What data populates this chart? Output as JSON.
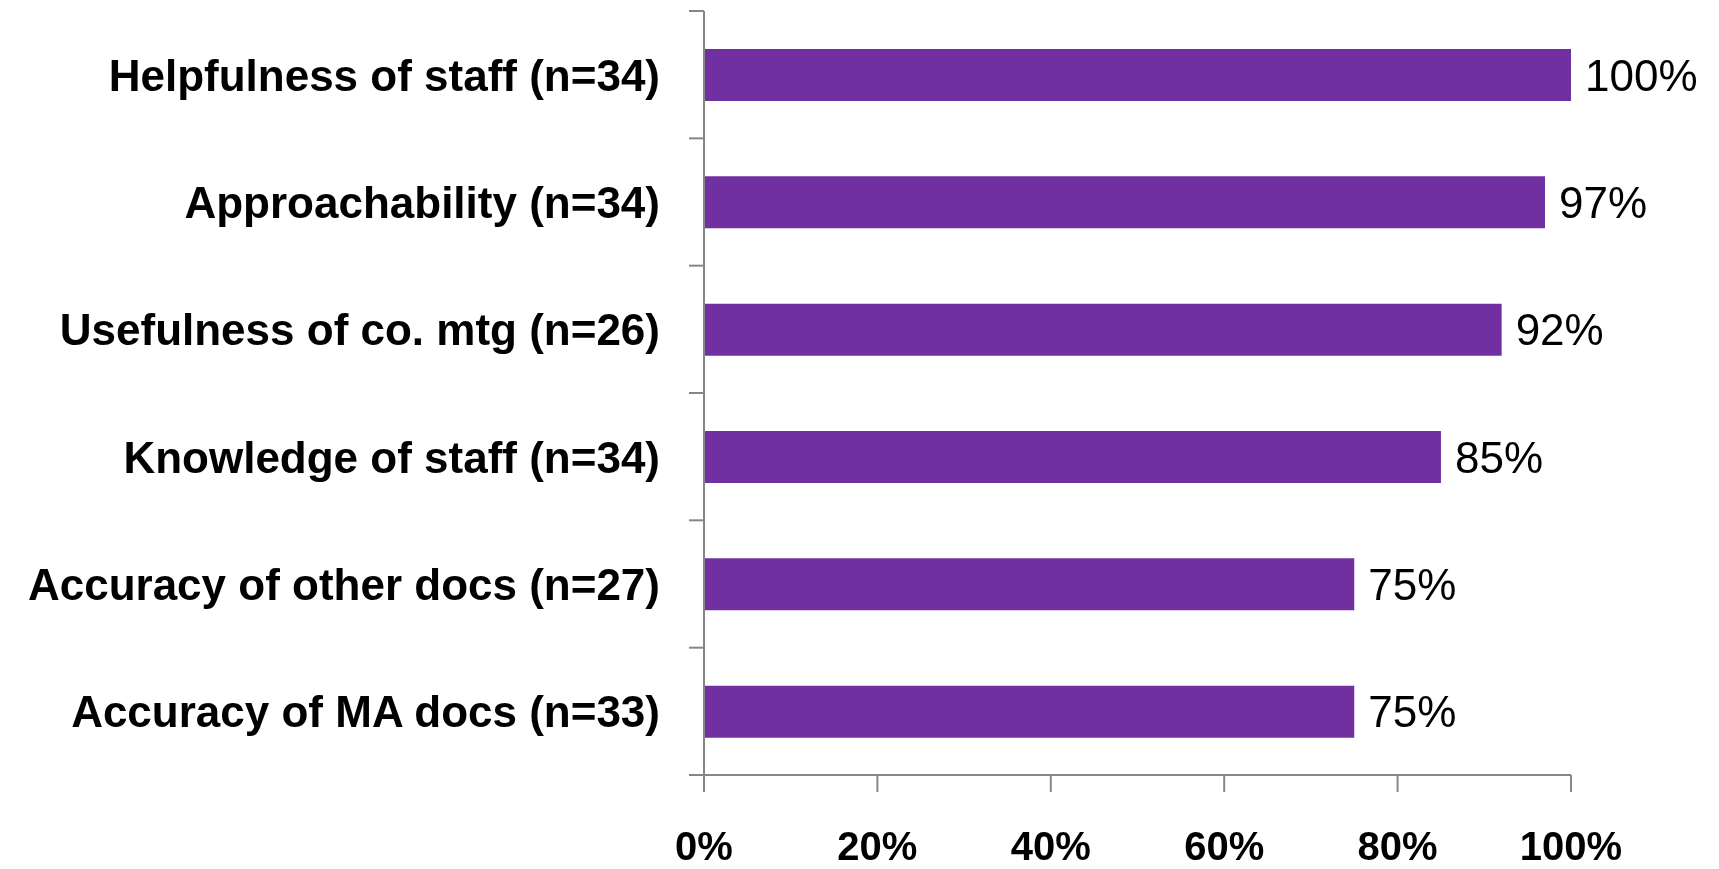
{
  "chart_data": {
    "type": "bar",
    "orientation": "horizontal",
    "categories": [
      "Helpfulness of staff (n=34)",
      "Approachability (n=34)",
      "Usefulness of co. mtg (n=26)",
      "Knowledge of staff (n=34)",
      "Accuracy of other docs (n=27)",
      "Accuracy of MA docs (n=33)"
    ],
    "values": [
      100,
      97,
      92,
      85,
      75,
      75
    ],
    "color": "#7030a0",
    "value_labels": [
      "100%",
      "97%",
      "92%",
      "85%",
      "75%",
      "75%"
    ],
    "xlim": [
      0,
      100
    ],
    "xticks": [
      {
        "value": 0,
        "label": "0%"
      },
      {
        "value": 20,
        "label": "20%"
      },
      {
        "value": 40,
        "label": "40%"
      },
      {
        "value": 60,
        "label": "60%"
      },
      {
        "value": 80,
        "label": "80%"
      },
      {
        "value": 100,
        "label": "100%"
      }
    ]
  }
}
